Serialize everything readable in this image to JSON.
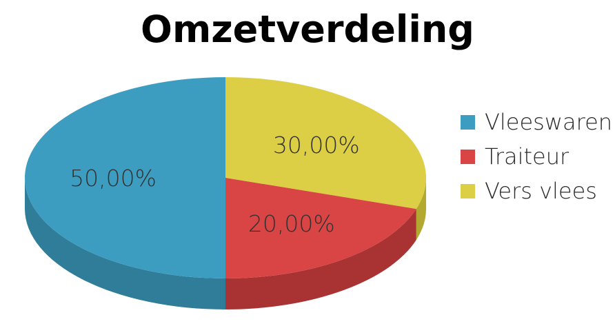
{
  "chart_data": {
    "type": "pie",
    "title": "Omzetverdeling",
    "categories": [
      "Vleeswaren",
      "Traiteur",
      "Vers vlees"
    ],
    "values": [
      50,
      20,
      30
    ],
    "data_labels": [
      "50,00%",
      "20,00%",
      "30,00%"
    ],
    "colors": [
      "#3d9dc0",
      "#d94444",
      "#dccf45"
    ],
    "side_colors": [
      "#2f7d99",
      "#a93333",
      "#b3a830"
    ],
    "style": "3d",
    "legend_position": "right"
  }
}
